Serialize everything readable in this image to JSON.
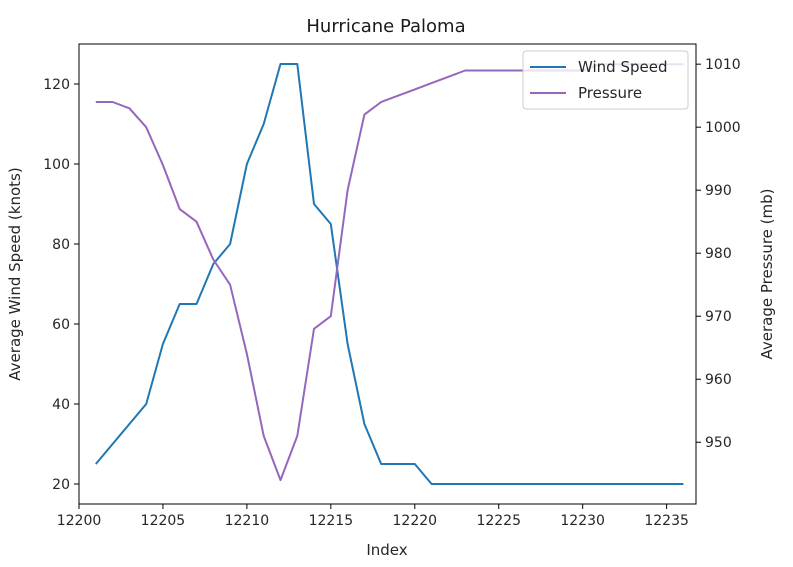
{
  "chart_data": {
    "type": "line",
    "title": "Hurricane Paloma",
    "xlabel": "Index",
    "ylabel_left": "Average Wind Speed (knots)",
    "ylabel_right": "Average Pressure (mb)",
    "xlim": [
      12200,
      12236.75
    ],
    "ylim_left": [
      15,
      130
    ],
    "ylim_right": [
      940.2,
      1013.2
    ],
    "x_ticks": [
      12200,
      12205,
      12210,
      12215,
      12220,
      12225,
      12230,
      12235
    ],
    "y_left_ticks": [
      20,
      40,
      60,
      80,
      100,
      120
    ],
    "y_right_ticks": [
      950,
      960,
      970,
      980,
      990,
      1000,
      1010
    ],
    "grid": false,
    "legend_position": "top-right",
    "x": [
      12201,
      12202,
      12203,
      12204,
      12205,
      12206,
      12207,
      12208,
      12209,
      12210,
      12211,
      12212,
      12213,
      12214,
      12215,
      12216,
      12217,
      12218,
      12219,
      12220,
      12221,
      12222,
      12223,
      12224,
      12225,
      12226,
      12227,
      12228,
      12229,
      12230,
      12231,
      12232,
      12233,
      12234,
      12235,
      12236
    ],
    "series": [
      {
        "name": "Wind Speed",
        "axis": "left",
        "color": "#1f77b4",
        "values": [
          25,
          30,
          35,
          40,
          55,
          65,
          65,
          75,
          80,
          100,
          110,
          125,
          125,
          90,
          85,
          55,
          35,
          25,
          25,
          25,
          20,
          20,
          20,
          20,
          20,
          20,
          20,
          20,
          20,
          20,
          20,
          20,
          20,
          20,
          20,
          20
        ]
      },
      {
        "name": "Pressure",
        "axis": "right",
        "color": "#9467bd",
        "values": [
          1004,
          1004,
          1003,
          1000,
          994,
          987,
          985,
          979,
          975,
          964,
          951,
          944,
          951,
          968,
          970,
          990,
          1002,
          1004,
          1005,
          1006,
          1007,
          1008,
          1009,
          1009,
          1009,
          1009,
          1009,
          1009,
          1009,
          1009,
          1010,
          1010,
          1010,
          1010,
          1010,
          1010
        ]
      }
    ]
  }
}
